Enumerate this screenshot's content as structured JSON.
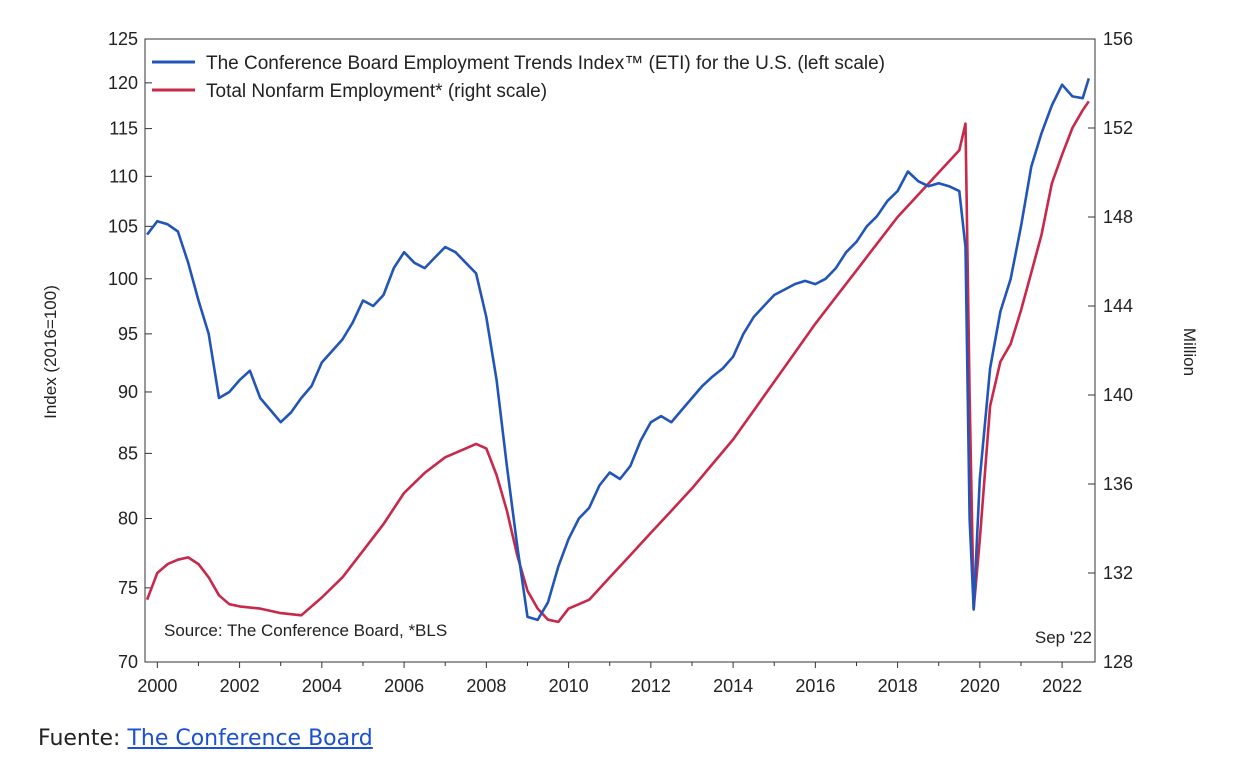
{
  "chart_data": {
    "type": "line",
    "title": "",
    "x_ticks": [
      "2000",
      "2002",
      "2004",
      "2006",
      "2008",
      "2010",
      "2012",
      "2014",
      "2016",
      "2018",
      "2020",
      "2022"
    ],
    "xlim": [
      1999.7,
      2022.8
    ],
    "left_axis": {
      "label": "Index (2016=100)",
      "scale": "log",
      "ylim": [
        70,
        125
      ],
      "ticks": [
        70,
        75,
        80,
        85,
        90,
        95,
        100,
        105,
        110,
        115,
        120,
        125
      ]
    },
    "right_axis": {
      "label": "Million",
      "ylim": [
        128,
        156
      ],
      "ticks": [
        128,
        132,
        136,
        140,
        144,
        148,
        152,
        156
      ]
    },
    "series": [
      {
        "name": "The Conference Board Employment Trends Index™ (ETI) for the U.S. (left scale)",
        "axis": "left",
        "color": "#2155b8",
        "points": [
          [
            1999.75,
            104.2
          ],
          [
            2000.0,
            105.5
          ],
          [
            2000.25,
            105.2
          ],
          [
            2000.5,
            104.5
          ],
          [
            2000.75,
            101.5
          ],
          [
            2001.0,
            98.0
          ],
          [
            2001.25,
            95.0
          ],
          [
            2001.5,
            89.5
          ],
          [
            2001.75,
            90.0
          ],
          [
            2002.0,
            91.0
          ],
          [
            2002.25,
            91.8
          ],
          [
            2002.5,
            89.5
          ],
          [
            2002.75,
            88.5
          ],
          [
            2003.0,
            87.5
          ],
          [
            2003.25,
            88.3
          ],
          [
            2003.5,
            89.5
          ],
          [
            2003.75,
            90.5
          ],
          [
            2004.0,
            92.5
          ],
          [
            2004.25,
            93.5
          ],
          [
            2004.5,
            94.5
          ],
          [
            2004.75,
            96.0
          ],
          [
            2005.0,
            98.0
          ],
          [
            2005.25,
            97.5
          ],
          [
            2005.5,
            98.5
          ],
          [
            2005.75,
            101.0
          ],
          [
            2006.0,
            102.5
          ],
          [
            2006.25,
            101.5
          ],
          [
            2006.5,
            101.0
          ],
          [
            2006.75,
            102.0
          ],
          [
            2007.0,
            103.0
          ],
          [
            2007.25,
            102.5
          ],
          [
            2007.5,
            101.5
          ],
          [
            2007.75,
            100.5
          ],
          [
            2008.0,
            96.5
          ],
          [
            2008.25,
            91.0
          ],
          [
            2008.5,
            84.0
          ],
          [
            2008.75,
            78.0
          ],
          [
            2009.0,
            73.0
          ],
          [
            2009.25,
            72.8
          ],
          [
            2009.5,
            74.0
          ],
          [
            2009.75,
            76.5
          ],
          [
            2010.0,
            78.5
          ],
          [
            2010.25,
            80.0
          ],
          [
            2010.5,
            80.8
          ],
          [
            2010.75,
            82.5
          ],
          [
            2011.0,
            83.5
          ],
          [
            2011.25,
            83.0
          ],
          [
            2011.5,
            84.0
          ],
          [
            2011.75,
            86.0
          ],
          [
            2012.0,
            87.5
          ],
          [
            2012.25,
            88.0
          ],
          [
            2012.5,
            87.5
          ],
          [
            2012.75,
            88.5
          ],
          [
            2013.0,
            89.5
          ],
          [
            2013.25,
            90.5
          ],
          [
            2013.5,
            91.3
          ],
          [
            2013.75,
            92.0
          ],
          [
            2014.0,
            93.0
          ],
          [
            2014.25,
            95.0
          ],
          [
            2014.5,
            96.5
          ],
          [
            2014.75,
            97.5
          ],
          [
            2015.0,
            98.5
          ],
          [
            2015.25,
            99.0
          ],
          [
            2015.5,
            99.5
          ],
          [
            2015.75,
            99.8
          ],
          [
            2016.0,
            99.5
          ],
          [
            2016.25,
            100.0
          ],
          [
            2016.5,
            101.0
          ],
          [
            2016.75,
            102.5
          ],
          [
            2017.0,
            103.5
          ],
          [
            2017.25,
            105.0
          ],
          [
            2017.5,
            106.0
          ],
          [
            2017.75,
            107.5
          ],
          [
            2018.0,
            108.5
          ],
          [
            2018.25,
            110.5
          ],
          [
            2018.5,
            109.5
          ],
          [
            2018.75,
            109.0
          ],
          [
            2019.0,
            109.3
          ],
          [
            2019.25,
            109.0
          ],
          [
            2019.5,
            108.5
          ],
          [
            2019.65,
            103.0
          ],
          [
            2019.75,
            80.0
          ],
          [
            2019.85,
            73.5
          ],
          [
            2020.0,
            83.0
          ],
          [
            2020.25,
            92.0
          ],
          [
            2020.5,
            97.0
          ],
          [
            2020.75,
            100.0
          ],
          [
            2021.0,
            105.0
          ],
          [
            2021.25,
            111.0
          ],
          [
            2021.5,
            114.5
          ],
          [
            2021.75,
            117.5
          ],
          [
            2022.0,
            119.8
          ],
          [
            2022.25,
            118.5
          ],
          [
            2022.5,
            118.3
          ],
          [
            2022.65,
            120.5
          ]
        ]
      },
      {
        "name": "Total Nonfarm Employment* (right scale)",
        "axis": "right",
        "color": "#c8284a",
        "points": [
          [
            1999.75,
            130.8
          ],
          [
            2000.0,
            132.0
          ],
          [
            2000.25,
            132.4
          ],
          [
            2000.5,
            132.6
          ],
          [
            2000.75,
            132.7
          ],
          [
            2001.0,
            132.4
          ],
          [
            2001.25,
            131.8
          ],
          [
            2001.5,
            131.0
          ],
          [
            2001.75,
            130.6
          ],
          [
            2002.0,
            130.5
          ],
          [
            2002.5,
            130.4
          ],
          [
            2003.0,
            130.2
          ],
          [
            2003.5,
            130.1
          ],
          [
            2004.0,
            130.9
          ],
          [
            2004.5,
            131.8
          ],
          [
            2005.0,
            133.0
          ],
          [
            2005.5,
            134.2
          ],
          [
            2006.0,
            135.6
          ],
          [
            2006.5,
            136.5
          ],
          [
            2007.0,
            137.2
          ],
          [
            2007.5,
            137.6
          ],
          [
            2007.75,
            137.8
          ],
          [
            2008.0,
            137.6
          ],
          [
            2008.25,
            136.4
          ],
          [
            2008.5,
            134.8
          ],
          [
            2008.75,
            132.8
          ],
          [
            2009.0,
            131.2
          ],
          [
            2009.25,
            130.4
          ],
          [
            2009.5,
            129.9
          ],
          [
            2009.75,
            129.8
          ],
          [
            2010.0,
            130.4
          ],
          [
            2010.25,
            130.6
          ],
          [
            2010.5,
            130.8
          ],
          [
            2011.0,
            131.8
          ],
          [
            2011.5,
            132.8
          ],
          [
            2012.0,
            133.8
          ],
          [
            2012.5,
            134.8
          ],
          [
            2013.0,
            135.8
          ],
          [
            2013.5,
            136.9
          ],
          [
            2014.0,
            138.0
          ],
          [
            2014.5,
            139.3
          ],
          [
            2015.0,
            140.6
          ],
          [
            2015.5,
            141.9
          ],
          [
            2016.0,
            143.2
          ],
          [
            2016.5,
            144.4
          ],
          [
            2017.0,
            145.6
          ],
          [
            2017.5,
            146.8
          ],
          [
            2018.0,
            148.0
          ],
          [
            2018.5,
            149.0
          ],
          [
            2019.0,
            150.0
          ],
          [
            2019.5,
            151.0
          ],
          [
            2019.65,
            152.2
          ],
          [
            2019.75,
            140.0
          ],
          [
            2019.85,
            130.4
          ],
          [
            2020.0,
            133.5
          ],
          [
            2020.25,
            139.5
          ],
          [
            2020.5,
            141.5
          ],
          [
            2020.75,
            142.3
          ],
          [
            2021.0,
            143.8
          ],
          [
            2021.25,
            145.5
          ],
          [
            2021.5,
            147.2
          ],
          [
            2021.75,
            149.5
          ],
          [
            2022.0,
            150.8
          ],
          [
            2022.25,
            152.0
          ],
          [
            2022.5,
            152.8
          ],
          [
            2022.65,
            153.2
          ]
        ]
      }
    ],
    "legend_position": "top-left",
    "annotations": {
      "source": "Source: The Conference Board, *BLS",
      "date_label": "Sep '22"
    },
    "grid": false
  },
  "caption": {
    "prefix": "Fuente: ",
    "link_text": "The Conference Board"
  }
}
